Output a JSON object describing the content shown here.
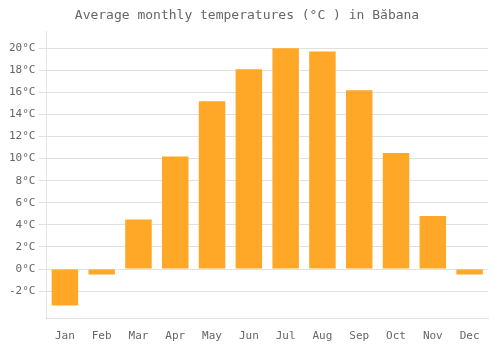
{
  "chart_data": {
    "type": "bar",
    "title": "Average monthly temperatures (°C ) in Băbana",
    "categories": [
      "Jan",
      "Feb",
      "Mar",
      "Apr",
      "May",
      "Jun",
      "Jul",
      "Aug",
      "Sep",
      "Oct",
      "Nov",
      "Dec"
    ],
    "values": [
      -3.3,
      -0.5,
      4.5,
      10.2,
      15.2,
      18.1,
      20.0,
      19.7,
      16.2,
      10.5,
      4.8,
      -0.5
    ],
    "color": "#FFA726",
    "ylim": [
      -4.5,
      21.5
    ],
    "yticks": [
      {
        "value": -2,
        "label": "-2°C"
      },
      {
        "value": 0,
        "label": "0°C"
      },
      {
        "value": 2,
        "label": "2°C"
      },
      {
        "value": 4,
        "label": "4°C"
      },
      {
        "value": 6,
        "label": "6°C"
      },
      {
        "value": 8,
        "label": "8°C"
      },
      {
        "value": 10,
        "label": "10°C"
      },
      {
        "value": 12,
        "label": "12°C"
      },
      {
        "value": 14,
        "label": "14°C"
      },
      {
        "value": 16,
        "label": "16°C"
      },
      {
        "value": 18,
        "label": "18°C"
      },
      {
        "value": 20,
        "label": "20°C"
      }
    ],
    "grid": true
  }
}
